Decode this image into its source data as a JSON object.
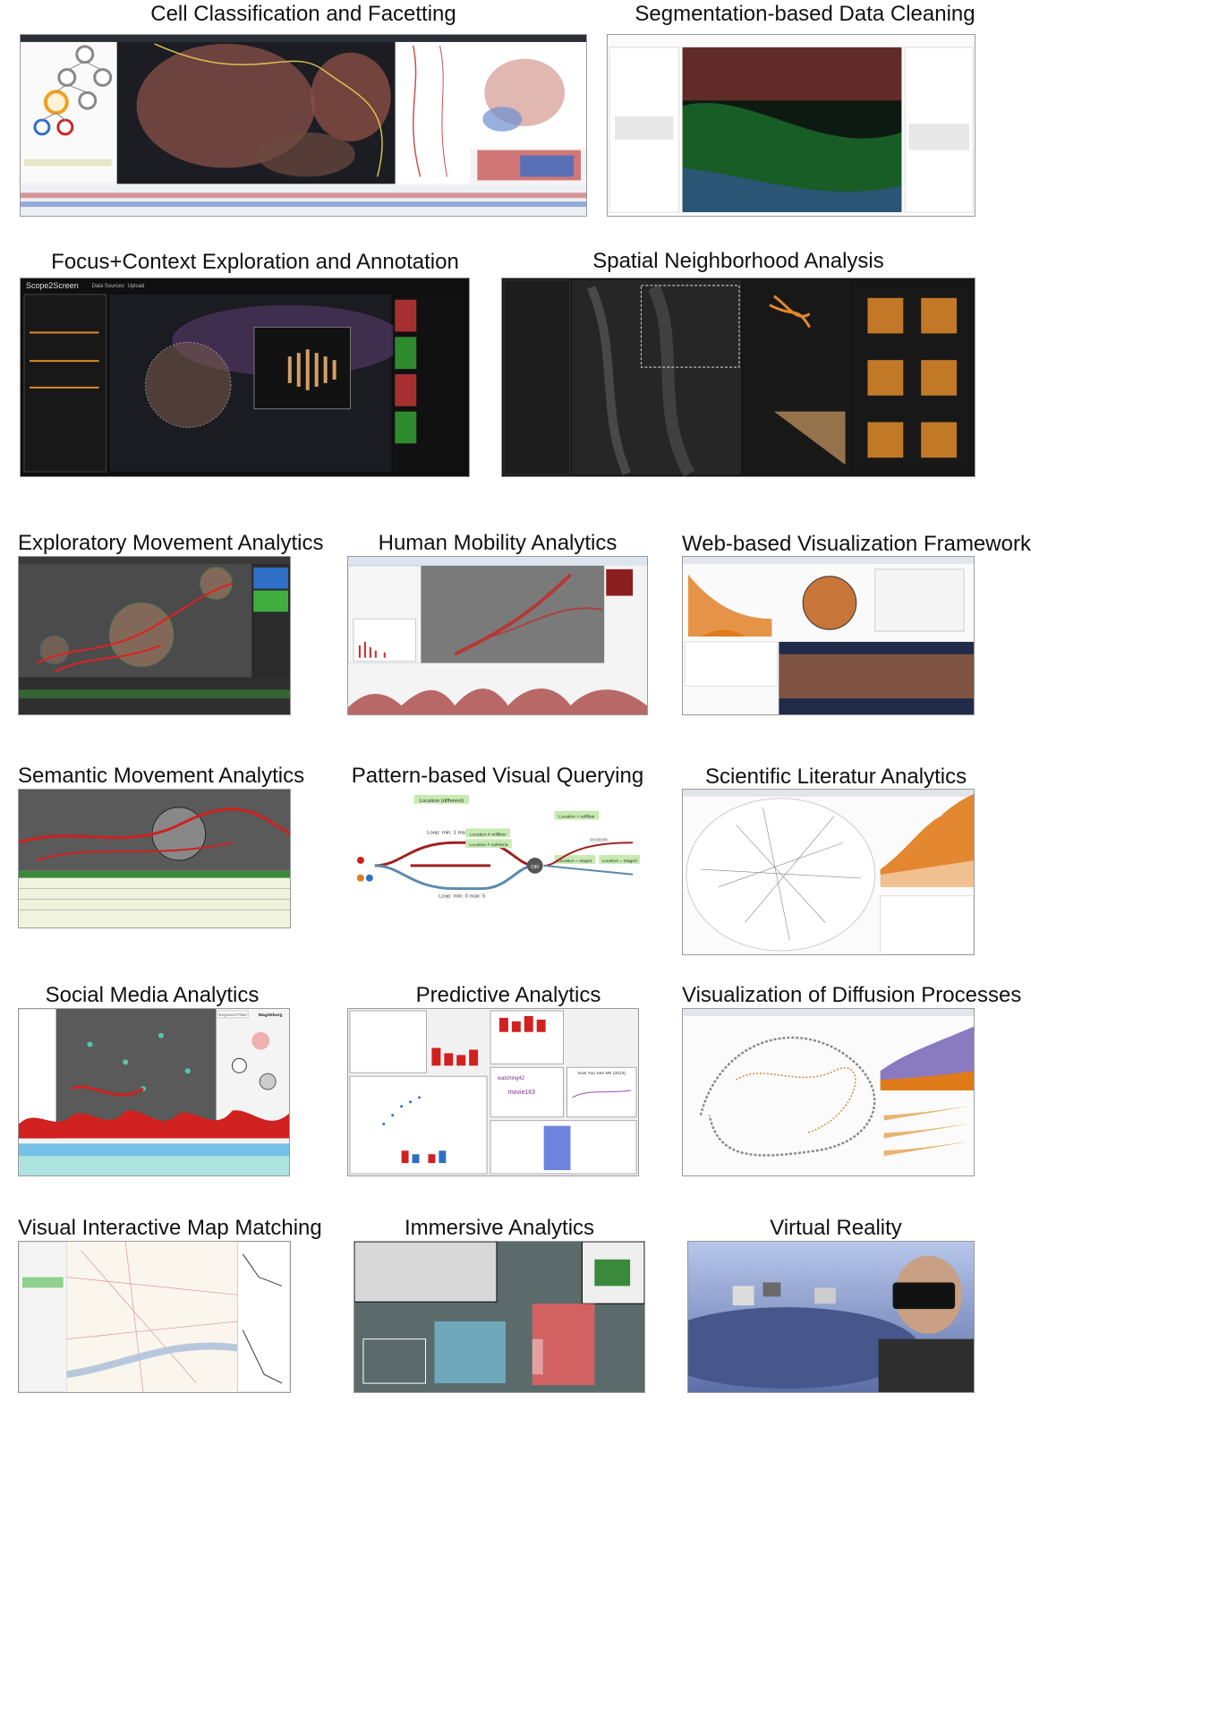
{
  "panels": [
    {
      "id": "cell-classification",
      "title": "Cell Classification and Facetting"
    },
    {
      "id": "segmentation-cleaning",
      "title": "Segmentation-based Data Cleaning"
    },
    {
      "id": "focus-context",
      "title": "Focus+Context Exploration and Annotation"
    },
    {
      "id": "spatial-neighborhood",
      "title": "Spatial Neighborhood Analysis"
    },
    {
      "id": "exploratory-movement",
      "title": "Exploratory Movement Analytics"
    },
    {
      "id": "human-mobility",
      "title": "Human Mobility Analytics"
    },
    {
      "id": "web-vis-framework",
      "title": "Web-based Visualization Framework"
    },
    {
      "id": "semantic-movement",
      "title": "Semantic Movement Analytics"
    },
    {
      "id": "pattern-querying",
      "title": "Pattern-based Visual Querying"
    },
    {
      "id": "literature-analytics",
      "title": "Scientific Literatur Analytics"
    },
    {
      "id": "social-media",
      "title": "Social Media Analytics"
    },
    {
      "id": "predictive-analytics",
      "title": "Predictive Analytics"
    },
    {
      "id": "diffusion-processes",
      "title": "Visualization of Diffusion Processes"
    },
    {
      "id": "map-matching",
      "title": "Visual Interactive Map Matching"
    },
    {
      "id": "immersive-analytics",
      "title": "Immersive Analytics"
    },
    {
      "id": "virtual-reality",
      "title": "Virtual Reality"
    }
  ],
  "visible_text": {
    "scope2screen_logo": "Scope2Screen",
    "data_sources_menu": "Data Sources",
    "upload_menu": "Upload",
    "pattern_location_different": "Location (different)",
    "pattern_loop_3": "Loop: min: 1 max: 3",
    "pattern_location_refillbar": "Location ≠ refillbar",
    "pattern_location_cafeteria": "Location ≠ cafeteria",
    "pattern_or": "OR",
    "pattern_loop_5": "Loop: min: 0 max: 5",
    "pattern_location_refillbar_top": "Location = refillbar",
    "pattern_location_stage1": "Location = stage1",
    "pattern_location_stage2": "Location = stage2",
    "pattern_time": "03:00:00",
    "keyword_filter": "Keyword Filter",
    "magdeburg": "Magdeburg",
    "now_you_see_me": "Now You See Me (2013)",
    "word_watching": "watching42",
    "word_movie": "movie163"
  },
  "colors": {
    "caption_text": "#111111",
    "accent_red": "#c62828",
    "accent_orange": "#e07b1a",
    "accent_green": "#3fae3f",
    "accent_blue": "#2f6fc7",
    "microscopy_bg": "#141414"
  }
}
